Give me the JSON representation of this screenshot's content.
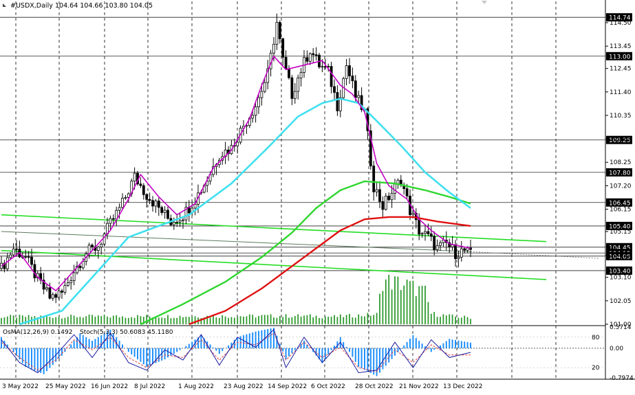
{
  "header": {
    "symbol": "#USDX,Daily",
    "ohlc": "104.64 104.66 103.80 104.05"
  },
  "osma_label": "OsMA(12,26,9) 0.1492",
  "stoch_label": "Stoch(5,3,3) 50.6083 45.1180",
  "colors": {
    "background": "#ffffff",
    "bull": "#000000",
    "bear": "#000000",
    "ma_fast": "#c400c4",
    "ma_mid": "#3fe0f0",
    "ma_slow": "#2ed62e",
    "ma_long": "#e01010",
    "trend_line": "#22dd22",
    "channel_line": "#5a7a5a",
    "volume": "#2e9a2e",
    "osma": "#1e90ff",
    "stoch_main": "#1a1aa0",
    "stoch_signal": "#e04040",
    "level_line": "#222222"
  },
  "chart_data": {
    "type": "candlestick",
    "y_axis_ticks": [
      "114.50",
      "113.45",
      "112.45",
      "111.40",
      "110.35",
      "109.30",
      "108.25",
      "107.20",
      "106.15",
      "105.15",
      "104.10",
      "103.10",
      "102.05",
      "101.00"
    ],
    "y_range": [
      101.0,
      114.9
    ],
    "x_axis_ticks": [
      "3 May 2022",
      "25 May 2022",
      "16 Jun 2022",
      "8 Jul 2022",
      "1 Aug 2022",
      "23 Aug 2022",
      "14 Sep 2022",
      "6 Oct 2022",
      "28 Oct 2022",
      "21 Nov 2022",
      "13 Dec 2022"
    ],
    "level_labels": [
      {
        "label": "114.74",
        "value": 114.74
      },
      {
        "label": "113.00",
        "value": 113.0
      },
      {
        "label": "109.25",
        "value": 109.25
      },
      {
        "label": "107.80",
        "value": 107.8
      },
      {
        "label": "106.45",
        "value": 106.45
      },
      {
        "label": "105.40",
        "value": 105.4
      },
      {
        "label": "104.45",
        "value": 104.45
      },
      {
        "label": "104.19",
        "value": 104.19
      },
      {
        "label": "104.05",
        "value": 104.05
      },
      {
        "label": "103.40",
        "value": 103.4
      }
    ],
    "price_path": [
      [
        0,
        103.5
      ],
      [
        4,
        104.4
      ],
      [
        8,
        104.0
      ],
      [
        12,
        103.0
      ],
      [
        16,
        102.2
      ],
      [
        20,
        102.4
      ],
      [
        24,
        103.4
      ],
      [
        28,
        104.2
      ],
      [
        32,
        104.5
      ],
      [
        36,
        105.5
      ],
      [
        40,
        106.4
      ],
      [
        44,
        107.6
      ],
      [
        48,
        106.8
      ],
      [
        52,
        106.2
      ],
      [
        56,
        105.6
      ],
      [
        60,
        105.9
      ],
      [
        64,
        106.6
      ],
      [
        68,
        107.5
      ],
      [
        72,
        108.6
      ],
      [
        76,
        108.9
      ],
      [
        80,
        109.9
      ],
      [
        84,
        110.8
      ],
      [
        88,
        112.2
      ],
      [
        91,
        114.5
      ],
      [
        93,
        112.8
      ],
      [
        96,
        111.3
      ],
      [
        99,
        112.4
      ],
      [
        102,
        113.3
      ],
      [
        105,
        112.6
      ],
      [
        108,
        112.3
      ],
      [
        111,
        110.8
      ],
      [
        114,
        112.6
      ],
      [
        117,
        111.2
      ],
      [
        120,
        110.5
      ],
      [
        123,
        107.2
      ],
      [
        126,
        106.3
      ],
      [
        129,
        106.9
      ],
      [
        132,
        107.5
      ],
      [
        135,
        106.1
      ],
      [
        138,
        105.2
      ],
      [
        141,
        104.9
      ],
      [
        144,
        104.4
      ],
      [
        147,
        104.6
      ],
      [
        150,
        104.2
      ],
      [
        153,
        104.3
      ],
      [
        155,
        104.1
      ]
    ],
    "ma_fast": [
      [
        0,
        103.6
      ],
      [
        6,
        104.2
      ],
      [
        12,
        103.1
      ],
      [
        18,
        102.5
      ],
      [
        24,
        103.4
      ],
      [
        30,
        104.3
      ],
      [
        36,
        105.2
      ],
      [
        42,
        106.6
      ],
      [
        46,
        107.7
      ],
      [
        52,
        106.7
      ],
      [
        58,
        105.9
      ],
      [
        64,
        106.4
      ],
      [
        70,
        108.0
      ],
      [
        76,
        108.8
      ],
      [
        82,
        110.2
      ],
      [
        86,
        111.7
      ],
      [
        90,
        113.0
      ],
      [
        94,
        112.4
      ],
      [
        100,
        112.6
      ],
      [
        106,
        112.8
      ],
      [
        112,
        111.7
      ],
      [
        116,
        111.3
      ],
      [
        120,
        110.5
      ],
      [
        124,
        108.2
      ],
      [
        128,
        107.2
      ],
      [
        134,
        106.6
      ],
      [
        138,
        105.7
      ],
      [
        142,
        105.2
      ],
      [
        148,
        104.6
      ],
      [
        155,
        104.4
      ]
    ],
    "ma_mid": [
      [
        6,
        101.0
      ],
      [
        20,
        101.6
      ],
      [
        32,
        103.4
      ],
      [
        42,
        104.9
      ],
      [
        52,
        105.4
      ],
      [
        62,
        105.9
      ],
      [
        76,
        107.3
      ],
      [
        88,
        108.9
      ],
      [
        98,
        110.3
      ],
      [
        106,
        110.9
      ],
      [
        112,
        111.1
      ],
      [
        118,
        110.9
      ],
      [
        124,
        110.1
      ],
      [
        132,
        109.0
      ],
      [
        140,
        107.8
      ],
      [
        148,
        106.9
      ],
      [
        155,
        106.2
      ]
    ],
    "ma_slow": [
      [
        46,
        101.0
      ],
      [
        60,
        101.9
      ],
      [
        74,
        102.9
      ],
      [
        86,
        104.0
      ],
      [
        96,
        105.1
      ],
      [
        104,
        106.2
      ],
      [
        112,
        107.0
      ],
      [
        120,
        107.4
      ],
      [
        130,
        107.3
      ],
      [
        140,
        107.0
      ],
      [
        148,
        106.7
      ],
      [
        155,
        106.4
      ]
    ],
    "ma_long": [
      [
        62,
        101.0
      ],
      [
        74,
        101.6
      ],
      [
        86,
        102.6
      ],
      [
        96,
        103.6
      ],
      [
        104,
        104.4
      ],
      [
        112,
        105.2
      ],
      [
        120,
        105.7
      ],
      [
        128,
        105.8
      ],
      [
        136,
        105.8
      ],
      [
        144,
        105.6
      ],
      [
        155,
        105.4
      ]
    ],
    "trend_lines": [
      {
        "kind": "trend",
        "from": [
          0,
          105.9
        ],
        "to": [
          180,
          104.7
        ]
      },
      {
        "kind": "trend",
        "from": [
          0,
          104.3
        ],
        "to": [
          180,
          103.0
        ]
      },
      {
        "kind": "channel",
        "from": [
          0,
          105.15
        ],
        "to": [
          155,
          104.25
        ]
      }
    ],
    "volume_scale": [
      0,
      10
    ],
    "volume_shape": [
      [
        0,
        1.0
      ],
      [
        100,
        1.1
      ],
      [
        110,
        1.0
      ],
      [
        124,
        1.3
      ],
      [
        126,
        5.8
      ],
      [
        134,
        5.2
      ],
      [
        140,
        4.2
      ],
      [
        142,
        1.4
      ],
      [
        150,
        1.0
      ],
      [
        155,
        0.9
      ]
    ],
    "osma_range": [
      -0.7974,
      0.5714
    ],
    "osma_ticks": [
      "0.5714",
      "0.00",
      "-0.7974"
    ],
    "stoch_ticks": [
      "80",
      "20"
    ],
    "osma_path": [
      [
        0,
        0.3
      ],
      [
        8,
        -0.5
      ],
      [
        14,
        -0.7
      ],
      [
        20,
        -0.2
      ],
      [
        26,
        0.4
      ],
      [
        30,
        0.2
      ],
      [
        36,
        0.5
      ],
      [
        42,
        -0.1
      ],
      [
        48,
        -0.5
      ],
      [
        54,
        -0.3
      ],
      [
        60,
        0.0
      ],
      [
        66,
        0.35
      ],
      [
        72,
        -0.15
      ],
      [
        78,
        0.3
      ],
      [
        84,
        0.45
      ],
      [
        90,
        0.55
      ],
      [
        94,
        -0.3
      ],
      [
        100,
        0.2
      ],
      [
        106,
        -0.4
      ],
      [
        112,
        0.3
      ],
      [
        118,
        -0.5
      ],
      [
        124,
        -0.75
      ],
      [
        130,
        -0.2
      ],
      [
        136,
        0.35
      ],
      [
        142,
        -0.1
      ],
      [
        148,
        0.25
      ],
      [
        155,
        0.15
      ]
    ],
    "stoch_path": [
      [
        0,
        75
      ],
      [
        6,
        30
      ],
      [
        12,
        10
      ],
      [
        18,
        45
      ],
      [
        24,
        85
      ],
      [
        30,
        40
      ],
      [
        36,
        88
      ],
      [
        42,
        30
      ],
      [
        48,
        15
      ],
      [
        54,
        55
      ],
      [
        60,
        35
      ],
      [
        66,
        85
      ],
      [
        72,
        25
      ],
      [
        78,
        80
      ],
      [
        84,
        60
      ],
      [
        90,
        95
      ],
      [
        94,
        20
      ],
      [
        100,
        80
      ],
      [
        106,
        30
      ],
      [
        112,
        70
      ],
      [
        118,
        10
      ],
      [
        124,
        15
      ],
      [
        130,
        70
      ],
      [
        136,
        20
      ],
      [
        142,
        75
      ],
      [
        148,
        40
      ],
      [
        155,
        50
      ]
    ],
    "stoch_signal_path": [
      [
        0,
        70
      ],
      [
        6,
        40
      ],
      [
        12,
        15
      ],
      [
        18,
        35
      ],
      [
        24,
        75
      ],
      [
        30,
        55
      ],
      [
        36,
        80
      ],
      [
        42,
        40
      ],
      [
        48,
        20
      ],
      [
        54,
        45
      ],
      [
        60,
        40
      ],
      [
        66,
        75
      ],
      [
        72,
        35
      ],
      [
        78,
        70
      ],
      [
        84,
        65
      ],
      [
        90,
        88
      ],
      [
        94,
        35
      ],
      [
        100,
        70
      ],
      [
        106,
        40
      ],
      [
        112,
        60
      ],
      [
        118,
        20
      ],
      [
        124,
        12
      ],
      [
        130,
        55
      ],
      [
        136,
        30
      ],
      [
        142,
        65
      ],
      [
        148,
        45
      ],
      [
        155,
        45
      ]
    ]
  }
}
